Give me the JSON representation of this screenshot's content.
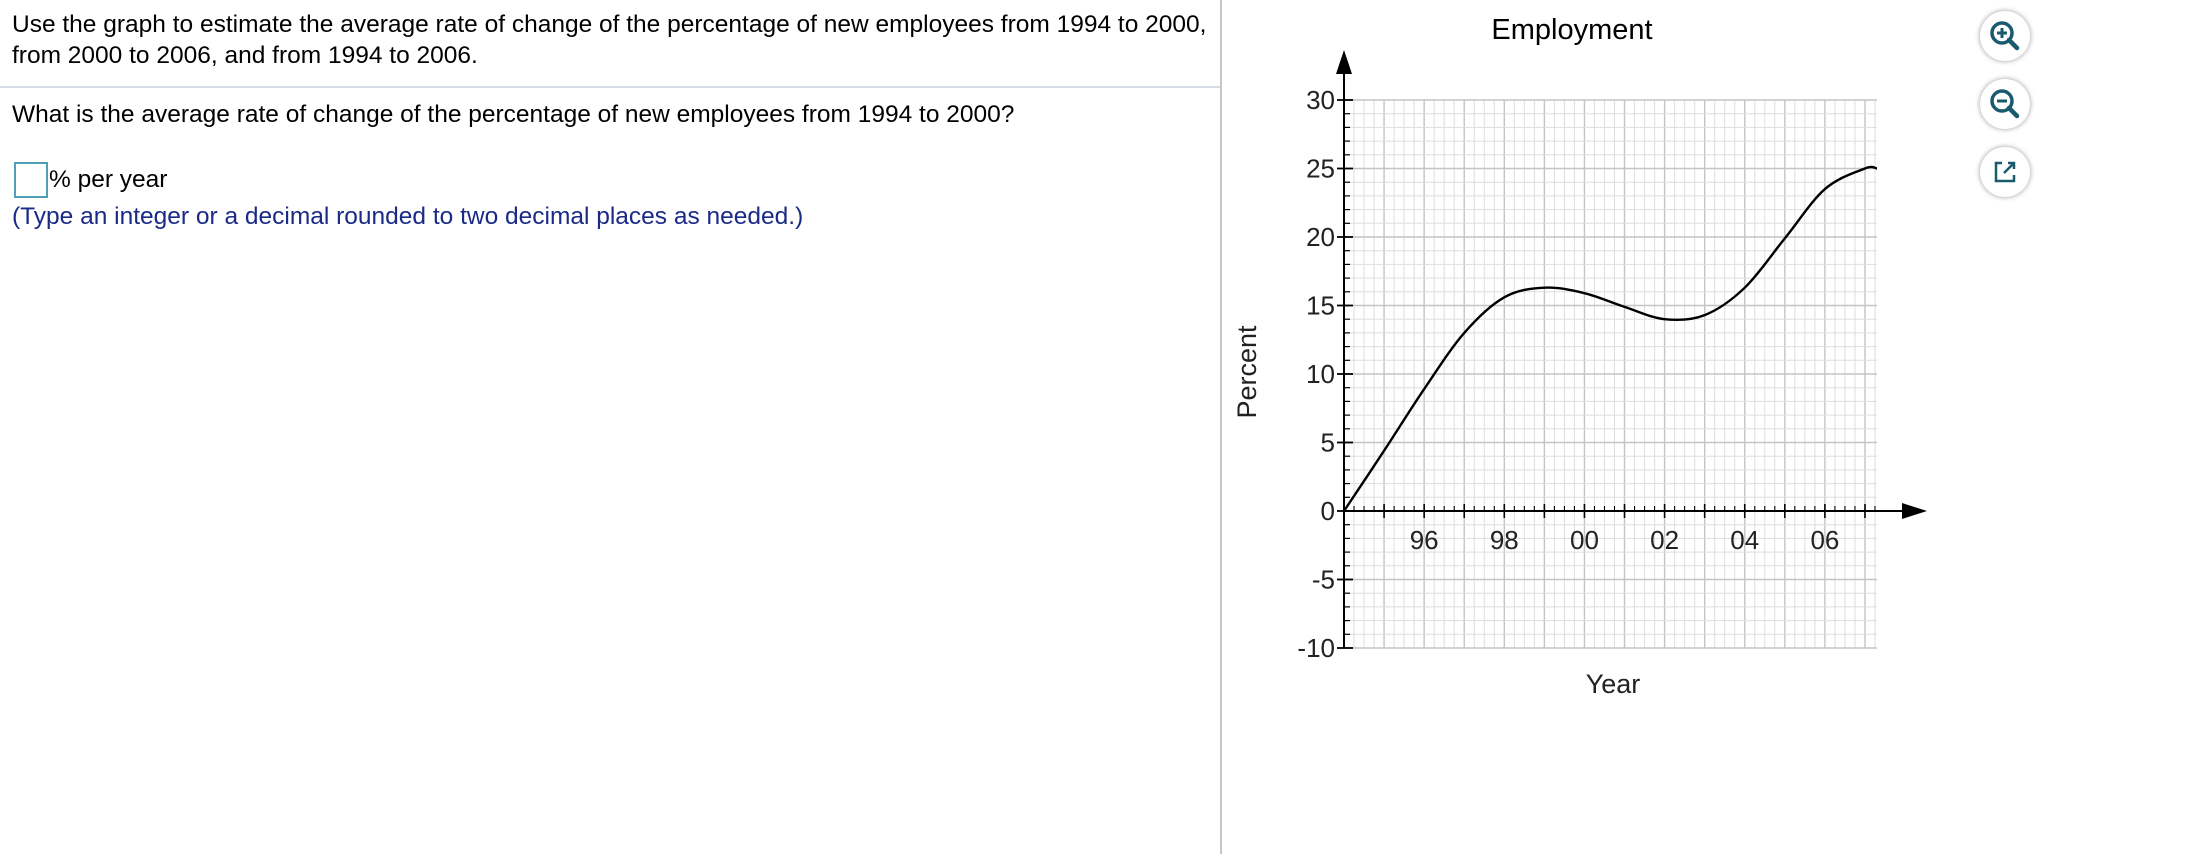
{
  "question": {
    "instructions": "Use the graph to estimate the average rate of change of the percentage of new employees from 1994 to 2000, from 2000 to 2006, and from 1994 to 2006.",
    "prompt": "What is the average rate of change of the percentage of new employees from 1994 to 2000?",
    "answer_value": "",
    "answer_unit": "% per year",
    "hint": "(Type an integer or a decimal rounded to two decimal places as needed.)"
  },
  "tools": {
    "zoom_in_icon": "magnifier-plus-icon",
    "zoom_out_icon": "magnifier-minus-icon",
    "popout_icon": "external-window-icon",
    "accent": "#1a5a6e"
  },
  "chart_data": {
    "type": "line",
    "title": "Employment",
    "xlabel": "Year",
    "ylabel": "Percent",
    "xlim": [
      1994,
      2007.3
    ],
    "ylim": [
      -10,
      30
    ],
    "x_ticks": [
      {
        "value": 1996,
        "label": "96"
      },
      {
        "value": 1998,
        "label": "98"
      },
      {
        "value": 2000,
        "label": "00"
      },
      {
        "value": 2002,
        "label": "02"
      },
      {
        "value": 2004,
        "label": "04"
      },
      {
        "value": 2006,
        "label": "06"
      }
    ],
    "y_ticks": [
      -10,
      -5,
      0,
      5,
      10,
      15,
      20,
      25,
      30
    ],
    "grid": true,
    "line_color": "#000000",
    "series": [
      {
        "x": [
          1994,
          1995,
          1996,
          1997,
          1998,
          1999,
          2000,
          2001,
          2002,
          2003,
          2004,
          2005,
          2006,
          2007,
          2007.3
        ],
        "y": [
          0,
          4.4,
          8.9,
          13.0,
          15.6,
          16.3,
          15.9,
          14.9,
          14.0,
          14.3,
          16.3,
          19.9,
          23.5,
          25.0,
          25.0
        ]
      }
    ]
  }
}
